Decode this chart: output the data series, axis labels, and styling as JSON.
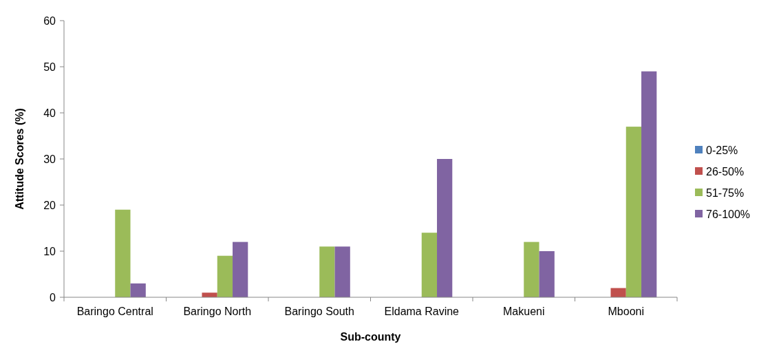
{
  "chart_data": {
    "type": "bar",
    "xlabel": "Sub-county",
    "ylabel": "Attitude Scores (%)",
    "categories": [
      "Baringo Central",
      "Baringo North",
      "Baringo South",
      "Eldama Ravine",
      "Makueni",
      "Mbooni"
    ],
    "series": [
      {
        "name": "0-25%",
        "color": "#4f81bd",
        "values": [
          0,
          0,
          0,
          0,
          0,
          0
        ]
      },
      {
        "name": "26-50%",
        "color": "#c0504d",
        "values": [
          0,
          1,
          0,
          0,
          0,
          2
        ]
      },
      {
        "name": "51-75%",
        "color": "#9bbb59",
        "values": [
          19,
          9,
          11,
          14,
          12,
          37
        ]
      },
      {
        "name": "76-100%",
        "color": "#8064a2",
        "values": [
          3,
          12,
          11,
          30,
          10,
          49
        ]
      }
    ],
    "ylim": [
      0,
      60
    ],
    "yticks": [
      0,
      10,
      20,
      30,
      40,
      50,
      60
    ],
    "grid": false,
    "legend": "right"
  }
}
